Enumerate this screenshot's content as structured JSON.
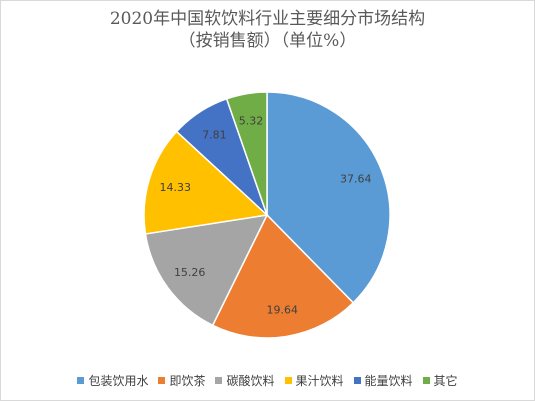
{
  "chart_data": {
    "type": "pie",
    "title": "2020年中国软饮料行业主要细分市场结构",
    "subtitle": "（按销售额）（单位%）",
    "categories": [
      "包装饮用水",
      "即饮茶",
      "碳酸饮料",
      "果汁饮料",
      "能量饮料",
      "其它"
    ],
    "values": [
      37.64,
      19.64,
      15.26,
      14.33,
      7.81,
      5.32
    ],
    "colors": [
      "#5b9bd5",
      "#ed7d31",
      "#a5a5a5",
      "#ffc000",
      "#4472c4",
      "#70ad47"
    ],
    "legend_position": "bottom",
    "data_labels": true
  }
}
